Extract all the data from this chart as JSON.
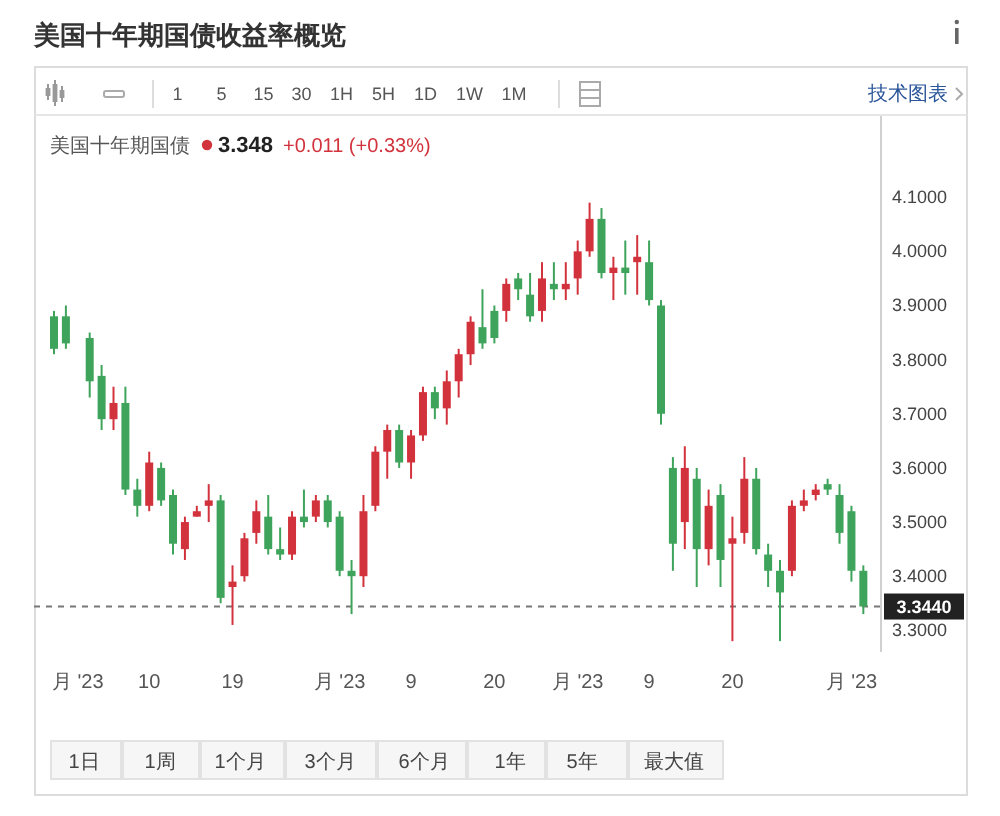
{
  "chart_data": {
    "type": "candlestick",
    "title": "美国十年期国债收益率概览",
    "subtitle": "美国十年期国债",
    "categories": [
      null,
      null,
      "月 '23",
      null,
      null,
      null,
      null,
      null,
      "10",
      null,
      null,
      null,
      null,
      null,
      null,
      "19",
      null,
      null,
      null,
      null,
      null,
      null,
      null,
      null,
      "月 '23",
      null,
      null,
      null,
      null,
      null,
      "9",
      null,
      null,
      null,
      null,
      null,
      null,
      "20",
      null,
      null,
      null,
      null,
      null,
      null,
      "月 '23",
      null,
      null,
      null,
      null,
      null,
      "9",
      null,
      null,
      null,
      null,
      null,
      null,
      "20",
      null,
      null,
      null,
      null,
      null,
      null,
      null,
      null,
      null,
      "月 '23",
      null
    ],
    "ohlc": [
      [
        3.88,
        3.89,
        3.81,
        3.82
      ],
      [
        3.88,
        3.9,
        3.82,
        3.83
      ],
      null,
      [
        3.84,
        3.85,
        3.73,
        3.76
      ],
      [
        3.77,
        3.79,
        3.67,
        3.69
      ],
      [
        3.69,
        3.75,
        3.67,
        3.72
      ],
      [
        3.72,
        3.75,
        3.55,
        3.56
      ],
      [
        3.56,
        3.58,
        3.51,
        3.53
      ],
      [
        3.53,
        3.63,
        3.52,
        3.61
      ],
      [
        3.6,
        3.61,
        3.53,
        3.54
      ],
      [
        3.55,
        3.56,
        3.44,
        3.46
      ],
      [
        3.45,
        3.51,
        3.43,
        3.5
      ],
      [
        3.51,
        3.53,
        3.51,
        3.52
      ],
      [
        3.53,
        3.57,
        3.5,
        3.54
      ],
      [
        3.54,
        3.55,
        3.35,
        3.36
      ],
      [
        3.38,
        3.42,
        3.31,
        3.39
      ],
      [
        3.4,
        3.48,
        3.39,
        3.47
      ],
      [
        3.48,
        3.54,
        3.46,
        3.52
      ],
      [
        3.51,
        3.55,
        3.44,
        3.45
      ],
      [
        3.45,
        3.49,
        3.43,
        3.44
      ],
      [
        3.44,
        3.52,
        3.43,
        3.51
      ],
      [
        3.51,
        3.56,
        3.49,
        3.5
      ],
      [
        3.51,
        3.55,
        3.5,
        3.54
      ],
      [
        3.54,
        3.55,
        3.49,
        3.5
      ],
      [
        3.51,
        3.52,
        3.4,
        3.41
      ],
      [
        3.41,
        3.43,
        3.33,
        3.4
      ],
      [
        3.4,
        3.55,
        3.38,
        3.52
      ],
      [
        3.53,
        3.64,
        3.52,
        3.63
      ],
      [
        3.63,
        3.68,
        3.58,
        3.67
      ],
      [
        3.67,
        3.68,
        3.6,
        3.61
      ],
      [
        3.61,
        3.67,
        3.58,
        3.66
      ],
      [
        3.66,
        3.75,
        3.65,
        3.74
      ],
      [
        3.74,
        3.75,
        3.69,
        3.71
      ],
      [
        3.71,
        3.78,
        3.68,
        3.76
      ],
      [
        3.76,
        3.82,
        3.73,
        3.81
      ],
      [
        3.81,
        3.88,
        3.79,
        3.87
      ],
      [
        3.86,
        3.93,
        3.82,
        3.83
      ],
      [
        3.89,
        3.9,
        3.83,
        3.84
      ],
      [
        3.89,
        3.95,
        3.87,
        3.94
      ],
      [
        3.95,
        3.96,
        3.91,
        3.93
      ],
      [
        3.92,
        3.96,
        3.87,
        3.88
      ],
      [
        3.89,
        3.98,
        3.87,
        3.95
      ],
      [
        3.94,
        3.98,
        3.91,
        3.93
      ],
      [
        3.93,
        3.98,
        3.91,
        3.94
      ],
      [
        3.95,
        4.02,
        3.92,
        4.0
      ],
      [
        4.0,
        4.09,
        3.99,
        4.06
      ],
      [
        4.06,
        4.08,
        3.95,
        3.96
      ],
      [
        3.96,
        3.99,
        3.91,
        3.97
      ],
      [
        3.97,
        4.02,
        3.92,
        3.96
      ],
      [
        3.98,
        4.03,
        3.92,
        3.99
      ],
      [
        3.98,
        4.02,
        3.9,
        3.91
      ],
      [
        3.9,
        3.91,
        3.68,
        3.7
      ],
      [
        3.6,
        3.62,
        3.41,
        3.46
      ],
      [
        3.5,
        3.64,
        3.45,
        3.6
      ],
      [
        3.58,
        3.6,
        3.38,
        3.45
      ],
      [
        3.45,
        3.56,
        3.42,
        3.53
      ],
      [
        3.55,
        3.57,
        3.38,
        3.43
      ],
      [
        3.46,
        3.51,
        3.28,
        3.47
      ],
      [
        3.48,
        3.62,
        3.46,
        3.58
      ],
      [
        3.58,
        3.6,
        3.44,
        3.45
      ],
      [
        3.44,
        3.46,
        3.38,
        3.41
      ],
      [
        3.41,
        3.43,
        3.28,
        3.37
      ],
      [
        3.41,
        3.54,
        3.4,
        3.53
      ],
      [
        3.53,
        3.56,
        3.52,
        3.54
      ],
      [
        3.55,
        3.57,
        3.54,
        3.56
      ],
      [
        3.57,
        3.58,
        3.55,
        3.56
      ],
      [
        3.55,
        3.57,
        3.46,
        3.48
      ],
      [
        3.52,
        3.53,
        3.39,
        3.41
      ],
      [
        3.41,
        3.42,
        3.33,
        3.344
      ]
    ],
    "colors": [
      "#3fa45b",
      "#3fa45b",
      null,
      "#3fa45b",
      "#3fa45b",
      "#d2323c",
      "#3fa45b",
      "#3fa45b",
      "#d2323c",
      "#3fa45b",
      "#3fa45b",
      "#d2323c",
      "#d2323c",
      "#d2323c",
      "#3fa45b",
      "#d2323c",
      "#d2323c",
      "#d2323c",
      "#3fa45b",
      "#3fa45b",
      "#d2323c",
      "#3fa45b",
      "#d2323c",
      "#3fa45b",
      "#3fa45b",
      "#3fa45b",
      "#d2323c",
      "#d2323c",
      "#d2323c",
      "#3fa45b",
      "#d2323c",
      "#d2323c",
      "#3fa45b",
      "#d2323c",
      "#d2323c",
      "#d2323c",
      "#3fa45b",
      "#3fa45b",
      "#d2323c",
      "#3fa45b",
      "#3fa45b",
      "#d2323c",
      "#3fa45b",
      "#d2323c",
      "#d2323c",
      "#d2323c",
      "#3fa45b",
      "#d2323c",
      "#3fa45b",
      "#d2323c",
      "#3fa45b",
      "#3fa45b",
      "#3fa45b",
      "#d2323c",
      "#3fa45b",
      "#d2323c",
      "#3fa45b",
      "#d2323c",
      "#d2323c",
      "#3fa45b",
      "#3fa45b",
      "#3fa45b",
      "#d2323c",
      "#d2323c",
      "#d2323c",
      "#3fa45b",
      "#3fa45b",
      "#3fa45b",
      "#3fa45b"
    ],
    "ylim": [
      3.26,
      4.25
    ],
    "yticks": [
      {
        "value": 3.3,
        "label": "3.3000"
      },
      {
        "value": 3.4,
        "label": "3.4000"
      },
      {
        "value": 3.5,
        "label": "3.5000"
      },
      {
        "value": 3.6,
        "label": "3.6000"
      },
      {
        "value": 3.7,
        "label": "3.7000"
      },
      {
        "value": 3.8,
        "label": "3.8000"
      },
      {
        "value": 3.9,
        "label": "3.9000"
      },
      {
        "value": 4.0,
        "label": "4.0000"
      },
      {
        "value": 4.1,
        "label": "4.1000"
      }
    ],
    "ref_lines": [
      {
        "axis": "y",
        "value": 3.344,
        "label": "3.3440",
        "color": "#777777",
        "line_style": "dashed"
      }
    ],
    "annotations": [
      "3.348",
      "+0.011 (+0.33%)",
      "1 5 15 30 1H 5H 1D 1W 1M",
      "技术图表",
      "1日",
      "1周",
      "1个月",
      "3个月",
      "6个月",
      "1年",
      "5年",
      "最大值"
    ]
  }
}
